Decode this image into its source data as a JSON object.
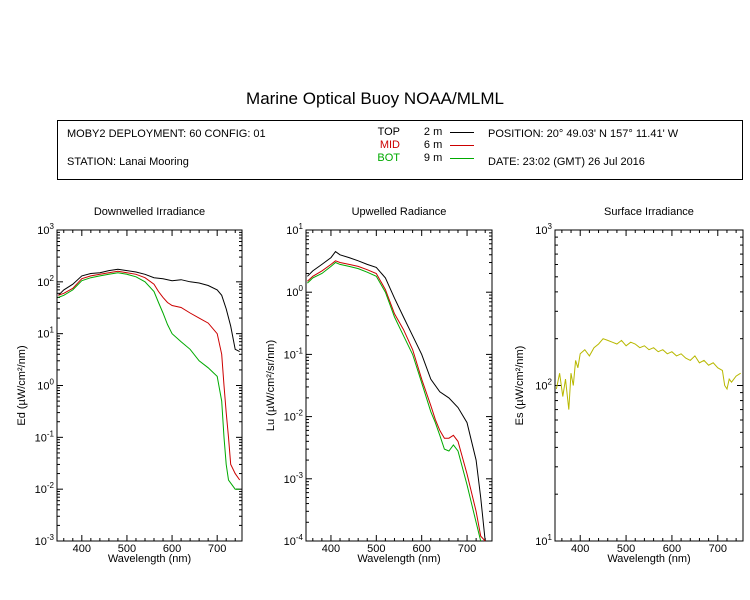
{
  "title": "Marine Optical Buoy NOAA/MLML",
  "info": {
    "deployment": "MOBY2 DEPLOYMENT: 60 CONFIG: 01",
    "station": "STATION: Lanai Mooring",
    "position": "POSITION: 20° 49.03' N   157° 11.41' W",
    "date": "DATE: 23:02 (GMT) 26 Jul 2016"
  },
  "legend": [
    {
      "name": "TOP",
      "depth": "2",
      "unit": "m",
      "color": "#000000"
    },
    {
      "name": "MID",
      "depth": "6",
      "unit": "m",
      "color": "#cc0000"
    },
    {
      "name": "BOT",
      "depth": "9",
      "unit": "m",
      "color": "#00aa00"
    }
  ],
  "chart_data": [
    {
      "type": "line",
      "title": "Downwelled Irradiance",
      "xlabel": "Wavelength (nm)",
      "ylabel": "Ed (µW/cm²/nm)",
      "xlim": [
        345,
        755
      ],
      "ylim": [
        0.001,
        1000
      ],
      "yscale": "log",
      "xticks": [
        400,
        500,
        600,
        700
      ],
      "yticks": [
        0.001,
        0.01,
        0.1,
        1,
        10,
        100,
        1000
      ],
      "series": [
        {
          "name": "TOP",
          "color": "#000000",
          "x": [
            348,
            360,
            380,
            400,
            420,
            440,
            460,
            480,
            500,
            520,
            540,
            560,
            580,
            600,
            620,
            640,
            660,
            680,
            700,
            710,
            720,
            730,
            740,
            750
          ],
          "y": [
            55,
            70,
            90,
            130,
            145,
            150,
            165,
            175,
            165,
            155,
            140,
            120,
            115,
            105,
            110,
            100,
            95,
            85,
            70,
            55,
            30,
            14,
            5,
            4.5
          ]
        },
        {
          "name": "MID",
          "color": "#cc0000",
          "x": [
            348,
            360,
            380,
            400,
            420,
            440,
            460,
            480,
            500,
            520,
            540,
            560,
            570,
            580,
            590,
            600,
            620,
            640,
            660,
            680,
            700,
            710,
            715,
            720,
            725,
            730,
            740,
            750
          ],
          "y": [
            55,
            60,
            75,
            115,
            130,
            140,
            150,
            160,
            150,
            140,
            120,
            90,
            65,
            50,
            40,
            35,
            32,
            25,
            20,
            16,
            10,
            4,
            1,
            0.3,
            0.1,
            0.03,
            0.02,
            0.015
          ]
        },
        {
          "name": "BOT",
          "color": "#00aa00",
          "x": [
            348,
            360,
            380,
            400,
            420,
            440,
            460,
            480,
            500,
            520,
            540,
            560,
            570,
            580,
            590,
            600,
            620,
            640,
            660,
            680,
            700,
            710,
            715,
            720,
            725,
            740,
            750
          ],
          "y": [
            50,
            55,
            70,
            105,
            120,
            130,
            140,
            150,
            140,
            125,
            100,
            65,
            40,
            25,
            15,
            10,
            7,
            5,
            3,
            2.2,
            1.5,
            0.5,
            0.1,
            0.03,
            0.015,
            0.01,
            0.01
          ]
        }
      ]
    },
    {
      "type": "line",
      "title": "Upwelled Radiance",
      "xlabel": "Wavelength (nm)",
      "ylabel": "Lu (µW/cm²/sr/nm)",
      "xlim": [
        345,
        755
      ],
      "ylim": [
        0.0001,
        10
      ],
      "yscale": "log",
      "xticks": [
        400,
        500,
        600,
        700
      ],
      "yticks": [
        0.0001,
        0.001,
        0.01,
        0.1,
        1,
        10
      ],
      "series": [
        {
          "name": "TOP",
          "color": "#000000",
          "x": [
            348,
            360,
            380,
            400,
            410,
            420,
            440,
            460,
            480,
            500,
            520,
            540,
            560,
            580,
            600,
            620,
            640,
            660,
            680,
            700,
            720,
            730,
            740
          ],
          "y": [
            1.8,
            2.2,
            2.8,
            3.6,
            4.5,
            4.0,
            3.6,
            3.2,
            2.8,
            2.5,
            1.7,
            0.8,
            0.4,
            0.2,
            0.1,
            0.04,
            0.025,
            0.02,
            0.014,
            0.008,
            0.002,
            0.0005,
            0.0001
          ]
        },
        {
          "name": "MID",
          "color": "#cc0000",
          "x": [
            348,
            360,
            380,
            400,
            410,
            420,
            440,
            460,
            480,
            500,
            520,
            540,
            560,
            580,
            600,
            620,
            630,
            640,
            650,
            660,
            670,
            680,
            700,
            720,
            730,
            740
          ],
          "y": [
            1.5,
            1.8,
            2.2,
            2.8,
            3.2,
            3.0,
            2.8,
            2.6,
            2.3,
            2.0,
            1.1,
            0.45,
            0.25,
            0.12,
            0.04,
            0.015,
            0.009,
            0.006,
            0.0045,
            0.0045,
            0.005,
            0.004,
            0.0012,
            0.0003,
            0.00012,
            0.0001
          ]
        },
        {
          "name": "BOT",
          "color": "#00aa00",
          "x": [
            348,
            360,
            380,
            400,
            410,
            420,
            440,
            460,
            480,
            500,
            520,
            540,
            560,
            580,
            600,
            620,
            630,
            640,
            650,
            660,
            670,
            680,
            700,
            720,
            730
          ],
          "y": [
            1.4,
            1.7,
            2.0,
            2.6,
            3.0,
            2.8,
            2.6,
            2.4,
            2.1,
            1.8,
            1.0,
            0.4,
            0.2,
            0.1,
            0.035,
            0.012,
            0.008,
            0.005,
            0.003,
            0.0028,
            0.0035,
            0.0028,
            0.0008,
            0.0002,
            0.0001
          ]
        }
      ]
    },
    {
      "type": "line",
      "title": "Surface Irradiance",
      "xlabel": "Wavelength (nm)",
      "ylabel": "Es (µW/cm²/nm)",
      "xlim": [
        345,
        755
      ],
      "ylim": [
        10,
        1000
      ],
      "yscale": "log",
      "xticks": [
        400,
        500,
        600,
        700
      ],
      "yticks": [
        10,
        100,
        1000
      ],
      "series": [
        {
          "name": "Es",
          "color": "#b8b800",
          "x": [
            348,
            355,
            362,
            368,
            375,
            380,
            385,
            390,
            395,
            400,
            410,
            420,
            430,
            440,
            450,
            460,
            470,
            480,
            490,
            500,
            510,
            520,
            530,
            540,
            550,
            560,
            570,
            580,
            590,
            600,
            610,
            620,
            630,
            640,
            650,
            660,
            670,
            680,
            690,
            700,
            710,
            715,
            720,
            725,
            730,
            740,
            750
          ],
          "y": [
            95,
            120,
            85,
            110,
            70,
            120,
            100,
            145,
            130,
            160,
            170,
            155,
            175,
            185,
            200,
            195,
            190,
            185,
            195,
            180,
            190,
            185,
            175,
            180,
            170,
            175,
            165,
            170,
            160,
            165,
            155,
            160,
            150,
            145,
            155,
            140,
            145,
            135,
            140,
            130,
            125,
            100,
            95,
            110,
            105,
            115,
            120
          ]
        }
      ]
    }
  ]
}
